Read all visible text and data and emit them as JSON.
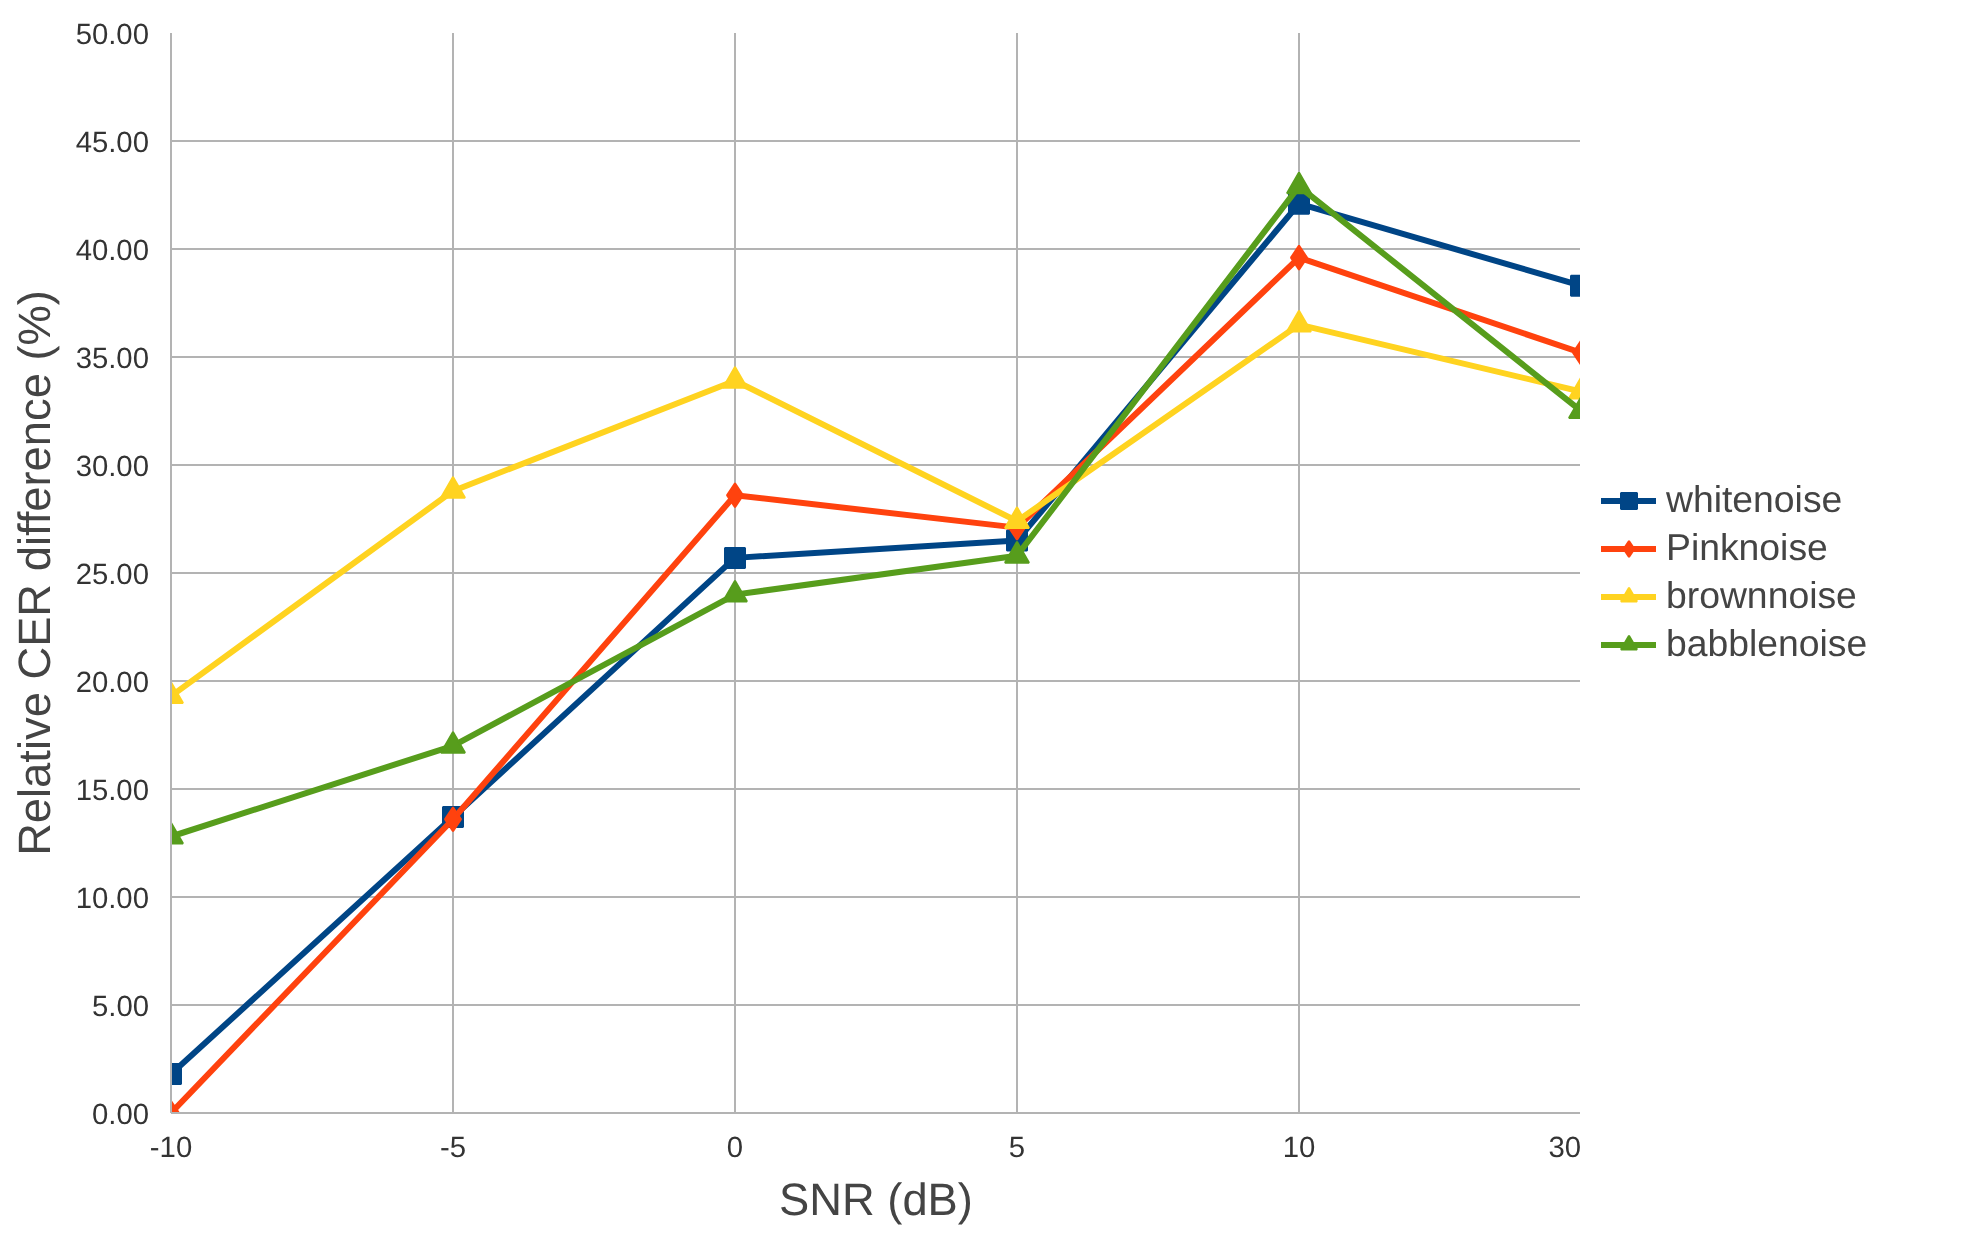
{
  "chart_data": {
    "type": "line",
    "xlabel": "SNR (dB)",
    "ylabel": "Relative CER difference (%)",
    "categories": [
      "-10",
      "-5",
      "0",
      "5",
      "10",
      "30"
    ],
    "ylim": [
      0,
      50
    ],
    "yticks": [
      {
        "value": 0,
        "label": "0.00"
      },
      {
        "value": 5,
        "label": "5.00"
      },
      {
        "value": 10,
        "label": "10.00"
      },
      {
        "value": 15,
        "label": "15.00"
      },
      {
        "value": 20,
        "label": "20.00"
      },
      {
        "value": 25,
        "label": "25.00"
      },
      {
        "value": 30,
        "label": "30.00"
      },
      {
        "value": 35,
        "label": "35.00"
      },
      {
        "value": 40,
        "label": "40.00"
      },
      {
        "value": 45,
        "label": "45.00"
      },
      {
        "value": 50,
        "label": "50.00"
      }
    ],
    "grid": true,
    "legend": "right",
    "line_style": "solid",
    "series": [
      {
        "name": "whitenoise",
        "color": "#004586",
        "marker": "square",
        "values": [
          1.8,
          13.7,
          25.7,
          26.5,
          42.1,
          38.3
        ]
      },
      {
        "name": "Pinknoise",
        "color": "#ff420e",
        "marker": "diamond",
        "values": [
          0,
          13.6,
          28.6,
          27.1,
          39.6,
          35.2
        ]
      },
      {
        "name": "brownnoise",
        "color": "#ffd320",
        "marker": "triangle",
        "values": [
          19.3,
          28.8,
          33.9,
          27.4,
          36.5,
          33.4
        ]
      },
      {
        "name": "babblenoise",
        "color": "#579d1c",
        "marker": "triangle",
        "values": [
          12.8,
          17.0,
          24.0,
          25.8,
          42.9,
          32.5
        ]
      }
    ]
  }
}
